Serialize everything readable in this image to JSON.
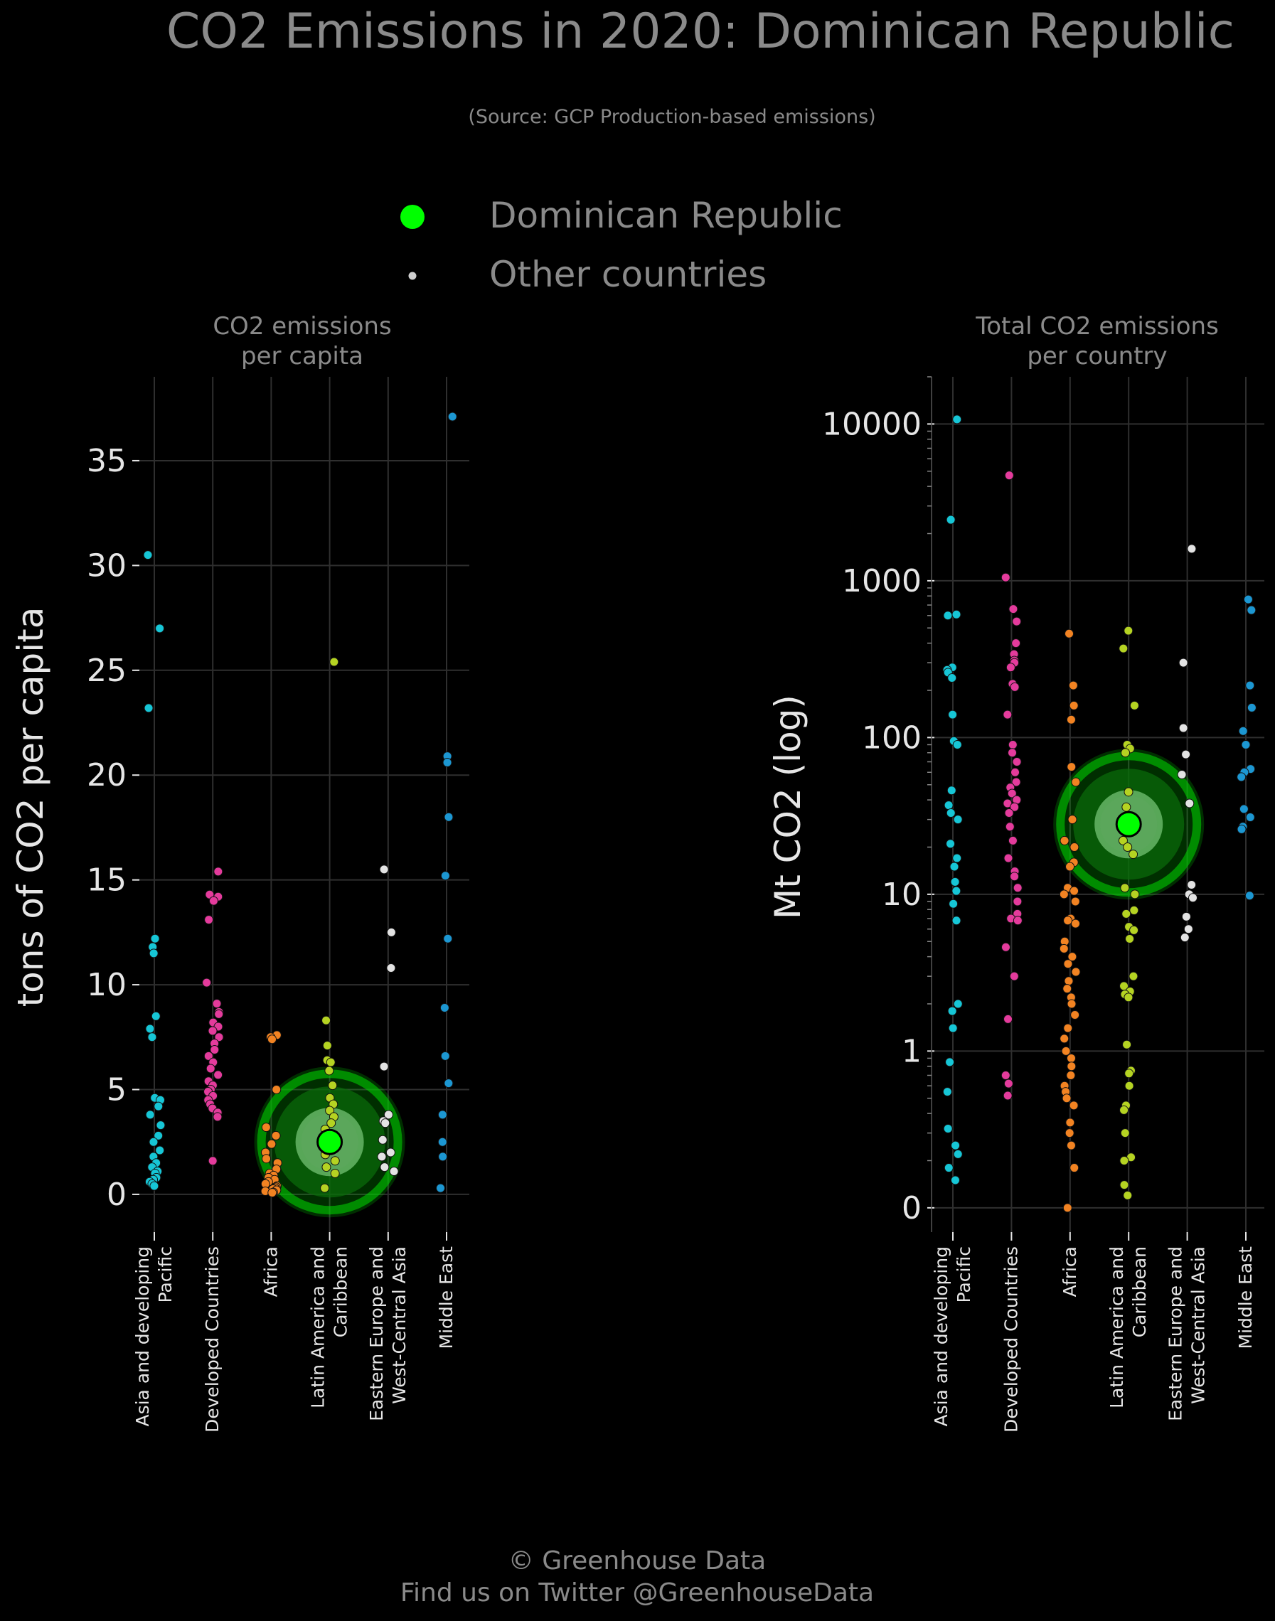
{
  "title": "CO2 Emissions in 2020: Dominican Republic",
  "subtitle": "(Source: GCP Production-based emissions)",
  "legend": {
    "highlight_label": "Dominican Republic",
    "other_label": "Other countries",
    "highlight_color": "#00ff00",
    "other_color": "#cfcfcf"
  },
  "footer": {
    "line1": "© Greenhouse Data",
    "line2": "Find us on Twitter @GreenhouseData"
  },
  "colors": {
    "background": "#000000",
    "text": "#8a8a8a",
    "axis_text": "#e6e6e6",
    "grid": "#2f2f2f",
    "categories": {
      "Asia and developing Pacific": "#16c6d6",
      "Developed Countries": "#e43b9c",
      "Africa": "#f28322",
      "Latin America and Caribbean": "#b5d322",
      "Eastern Europe and West-Central Asia": "#e3e3e3",
      "Middle East": "#1c97d2"
    }
  },
  "chart_data": [
    {
      "type": "scatter",
      "title": "CO2 emissions\nper capita",
      "ylabel": "tons of CO2 per capita",
      "xlabel": "",
      "yscale": "linear",
      "ylim": [
        -1.8,
        39
      ],
      "yticks": [
        0,
        5,
        10,
        15,
        20,
        25,
        30,
        35
      ],
      "ytick_labels": [
        "0",
        "5",
        "10",
        "15",
        "20",
        "25",
        "30",
        "35"
      ],
      "grid": true,
      "categories": [
        "Asia and developing\nPacific",
        "Developed Countries",
        "Africa",
        "Latin America and\nCaribbean",
        "Eastern Europe and\nWest-Central Asia",
        "Middle East"
      ],
      "series": [
        {
          "category": "Asia and developing Pacific",
          "values": [
            30.5,
            27.0,
            23.2,
            12.2,
            11.8,
            11.5,
            8.5,
            7.9,
            7.5,
            4.6,
            4.5,
            4.2,
            3.8,
            3.3,
            2.8,
            2.5,
            2.1,
            1.8,
            1.5,
            1.3,
            1.1,
            1.0,
            0.8,
            0.7,
            0.6,
            0.5,
            0.4
          ]
        },
        {
          "category": "Developed Countries",
          "values": [
            15.4,
            14.3,
            14.2,
            14.0,
            13.1,
            10.1,
            9.1,
            8.7,
            8.6,
            8.2,
            8.0,
            7.8,
            7.5,
            7.2,
            6.9,
            6.6,
            6.3,
            6.0,
            5.7,
            5.4,
            5.2,
            5.0,
            4.9,
            4.7,
            4.5,
            4.3,
            4.1,
            3.9,
            3.7,
            1.6
          ]
        },
        {
          "category": "Africa",
          "values": [
            7.6,
            7.5,
            7.4,
            5.0,
            3.2,
            2.8,
            2.4,
            2.0,
            1.7,
            1.5,
            1.2,
            1.0,
            0.9,
            0.8,
            0.7,
            0.6,
            0.5,
            0.4,
            0.35,
            0.3,
            0.25,
            0.2,
            0.15,
            0.1,
            0.08
          ]
        },
        {
          "category": "Latin America and Caribbean",
          "values": [
            25.4,
            8.3,
            7.1,
            6.4,
            6.3,
            5.9,
            5.2,
            4.6,
            4.3,
            4.0,
            3.7,
            3.4,
            3.1,
            2.8,
            2.5,
            2.2,
            1.9,
            1.6,
            1.3,
            1.0,
            0.3
          ]
        },
        {
          "category": "Eastern Europe and West-Central Asia",
          "values": [
            15.5,
            12.5,
            10.8,
            6.1,
            3.8,
            3.5,
            3.4,
            2.6,
            2.0,
            1.8,
            1.3,
            1.1
          ]
        },
        {
          "category": "Middle East",
          "values": [
            37.1,
            20.9,
            20.6,
            18.0,
            15.2,
            12.2,
            8.9,
            6.6,
            5.3,
            3.8,
            2.5,
            1.8,
            0.3
          ]
        }
      ],
      "highlight": {
        "name": "Dominican Republic",
        "category": "Latin America and Caribbean",
        "value": 2.5
      }
    },
    {
      "type": "scatter",
      "title": "Total CO2 emissions\nper country",
      "ylabel": "Mt CO2 (log)",
      "xlabel": "",
      "yscale": "log",
      "ylim": [
        0.07,
        20000
      ],
      "yticks": [
        0.1,
        1,
        10,
        100,
        1000,
        10000
      ],
      "ytick_labels": [
        "0",
        "1",
        "10",
        "100",
        "1000",
        "10000"
      ],
      "grid": true,
      "categories": [
        "Asia and developing\nPacific",
        "Developed Countries",
        "Africa",
        "Latin America and\nCaribbean",
        "Eastern Europe and\nWest-Central Asia",
        "Middle East"
      ],
      "series": [
        {
          "category": "Asia and developing Pacific",
          "values": [
            10700,
            2450,
            610,
            600,
            280,
            270,
            260,
            240,
            140,
            95,
            90,
            46,
            37,
            33,
            30,
            21,
            17,
            15,
            12,
            10.5,
            8.7,
            6.8,
            2.0,
            1.8,
            1.4,
            0.85,
            0.55,
            0.32,
            0.25,
            0.22,
            0.18,
            0.15
          ]
        },
        {
          "category": "Developed Countries",
          "values": [
            4700,
            1050,
            660,
            550,
            400,
            340,
            310,
            300,
            280,
            220,
            210,
            140,
            90,
            80,
            70,
            60,
            52,
            48,
            44,
            40,
            38,
            36,
            33,
            27,
            22,
            17,
            14,
            13,
            11,
            9,
            7.5,
            7.0,
            6.8,
            4.6,
            3.0,
            1.6,
            0.7,
            0.62,
            0.52
          ]
        },
        {
          "category": "Africa",
          "values": [
            460,
            215,
            160,
            130,
            65,
            52,
            30,
            22,
            20,
            16,
            15,
            11,
            10.5,
            10,
            9,
            7,
            6.8,
            6.5,
            5,
            4.5,
            4.0,
            3.6,
            3.2,
            2.8,
            2.5,
            2.2,
            2.0,
            1.7,
            1.4,
            1.2,
            1.0,
            0.9,
            0.8,
            0.7,
            0.6,
            0.55,
            0.5,
            0.45,
            0.35,
            0.3,
            0.25,
            0.18,
            0.1
          ]
        },
        {
          "category": "Latin America and Caribbean",
          "values": [
            480,
            370,
            160,
            90,
            85,
            80,
            45,
            36,
            30,
            25,
            22,
            20,
            18,
            11,
            10,
            7.9,
            7.5,
            6.2,
            5.9,
            5.2,
            3.0,
            2.6,
            2.4,
            2.3,
            2.2,
            1.1,
            0.75,
            0.72,
            0.6,
            0.45,
            0.42,
            0.3,
            0.21,
            0.2,
            0.14,
            0.12
          ]
        },
        {
          "category": "Eastern Europe and West-Central Asia",
          "values": [
            1600,
            300,
            115,
            78,
            58,
            38,
            11.5,
            10,
            9.5,
            7.2,
            6.0,
            5.3
          ]
        },
        {
          "category": "Middle East",
          "values": [
            760,
            650,
            215,
            155,
            110,
            90,
            63,
            60,
            56,
            35,
            31,
            27,
            26,
            9.8
          ]
        }
      ],
      "highlight": {
        "name": "Dominican Republic",
        "category": "Latin America and Caribbean",
        "value": 28
      }
    }
  ]
}
